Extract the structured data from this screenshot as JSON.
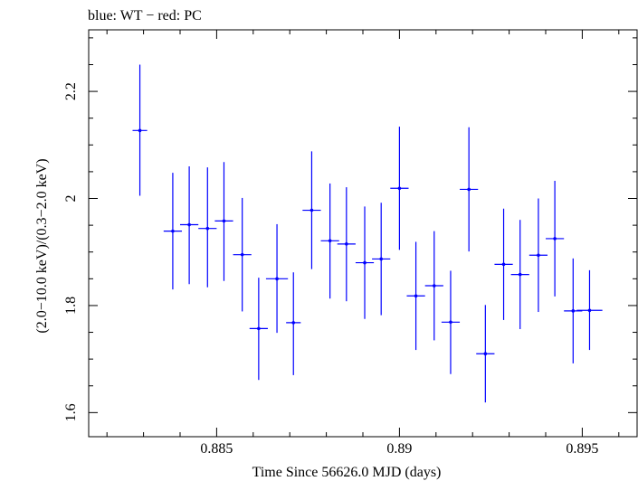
{
  "chart_data": {
    "type": "scatter",
    "title": "blue: WT − red: PC",
    "xlabel": "Time Since 56626.0 MJD (days)",
    "ylabel": "(2.0−10.0 keV)/(0.3−2.0 keV)",
    "xlim": [
      0.8815,
      0.8965
    ],
    "ylim": [
      1.555,
      2.315
    ],
    "x_ticks": [
      {
        "value": 0.885,
        "label": "0.885"
      },
      {
        "value": 0.89,
        "label": "0.89"
      },
      {
        "value": 0.895,
        "label": "0.895"
      }
    ],
    "y_ticks": [
      {
        "value": 1.6,
        "label": "1.6"
      },
      {
        "value": 1.8,
        "label": "1.8"
      },
      {
        "value": 2.0,
        "label": "2"
      },
      {
        "value": 2.2,
        "label": "2.2"
      }
    ],
    "series": [
      {
        "color": "#0000ff",
        "points": [
          {
            "x": 0.8829,
            "xerr": 0.0002,
            "y": 2.127,
            "ylo": 2.005,
            "yhi": 2.25
          },
          {
            "x": 0.8838,
            "xerr": 0.00025,
            "y": 1.939,
            "ylo": 1.83,
            "yhi": 2.048
          },
          {
            "x": 0.88425,
            "xerr": 0.00025,
            "y": 1.951,
            "ylo": 1.84,
            "yhi": 2.06
          },
          {
            "x": 0.88475,
            "xerr": 0.00025,
            "y": 1.944,
            "ylo": 1.834,
            "yhi": 2.058
          },
          {
            "x": 0.8852,
            "xerr": 0.00025,
            "y": 1.958,
            "ylo": 1.846,
            "yhi": 2.068
          },
          {
            "x": 0.8857,
            "xerr": 0.00025,
            "y": 1.895,
            "ylo": 1.789,
            "yhi": 2.001
          },
          {
            "x": 0.88615,
            "xerr": 0.00025,
            "y": 1.757,
            "ylo": 1.661,
            "yhi": 1.852
          },
          {
            "x": 0.88665,
            "xerr": 0.0003,
            "y": 1.85,
            "ylo": 1.749,
            "yhi": 1.952
          },
          {
            "x": 0.8871,
            "xerr": 0.0002,
            "y": 1.768,
            "ylo": 1.67,
            "yhi": 1.862
          },
          {
            "x": 0.8876,
            "xerr": 0.00025,
            "y": 1.978,
            "ylo": 1.868,
            "yhi": 2.088
          },
          {
            "x": 0.8881,
            "xerr": 0.00025,
            "y": 1.921,
            "ylo": 1.813,
            "yhi": 2.028
          },
          {
            "x": 0.88855,
            "xerr": 0.00025,
            "y": 1.915,
            "ylo": 1.808,
            "yhi": 2.021
          },
          {
            "x": 0.88905,
            "xerr": 0.00025,
            "y": 1.88,
            "ylo": 1.775,
            "yhi": 1.985
          },
          {
            "x": 0.8895,
            "xerr": 0.00025,
            "y": 1.887,
            "ylo": 1.782,
            "yhi": 1.992
          },
          {
            "x": 0.89,
            "xerr": 0.00025,
            "y": 2.019,
            "ylo": 1.904,
            "yhi": 2.134
          },
          {
            "x": 0.89045,
            "xerr": 0.00025,
            "y": 1.818,
            "ylo": 1.717,
            "yhi": 1.919
          },
          {
            "x": 0.89095,
            "xerr": 0.00025,
            "y": 1.837,
            "ylo": 1.735,
            "yhi": 1.939
          },
          {
            "x": 0.8914,
            "xerr": 0.00025,
            "y": 1.769,
            "ylo": 1.672,
            "yhi": 1.865
          },
          {
            "x": 0.8919,
            "xerr": 0.00025,
            "y": 2.017,
            "ylo": 1.901,
            "yhi": 2.133
          },
          {
            "x": 0.89235,
            "xerr": 0.00025,
            "y": 1.71,
            "ylo": 1.619,
            "yhi": 1.801
          },
          {
            "x": 0.89285,
            "xerr": 0.00025,
            "y": 1.877,
            "ylo": 1.773,
            "yhi": 1.981
          },
          {
            "x": 0.8933,
            "xerr": 0.00025,
            "y": 1.858,
            "ylo": 1.756,
            "yhi": 1.96
          },
          {
            "x": 0.8938,
            "xerr": 0.00025,
            "y": 1.894,
            "ylo": 1.788,
            "yhi": 2.0
          },
          {
            "x": 0.89425,
            "xerr": 0.00025,
            "y": 1.925,
            "ylo": 1.817,
            "yhi": 2.033
          },
          {
            "x": 0.89475,
            "xerr": 0.00025,
            "y": 1.79,
            "ylo": 1.692,
            "yhi": 1.888
          },
          {
            "x": 0.8952,
            "xerr": 0.00035,
            "y": 1.791,
            "ylo": 1.717,
            "yhi": 1.866
          }
        ]
      }
    ]
  }
}
